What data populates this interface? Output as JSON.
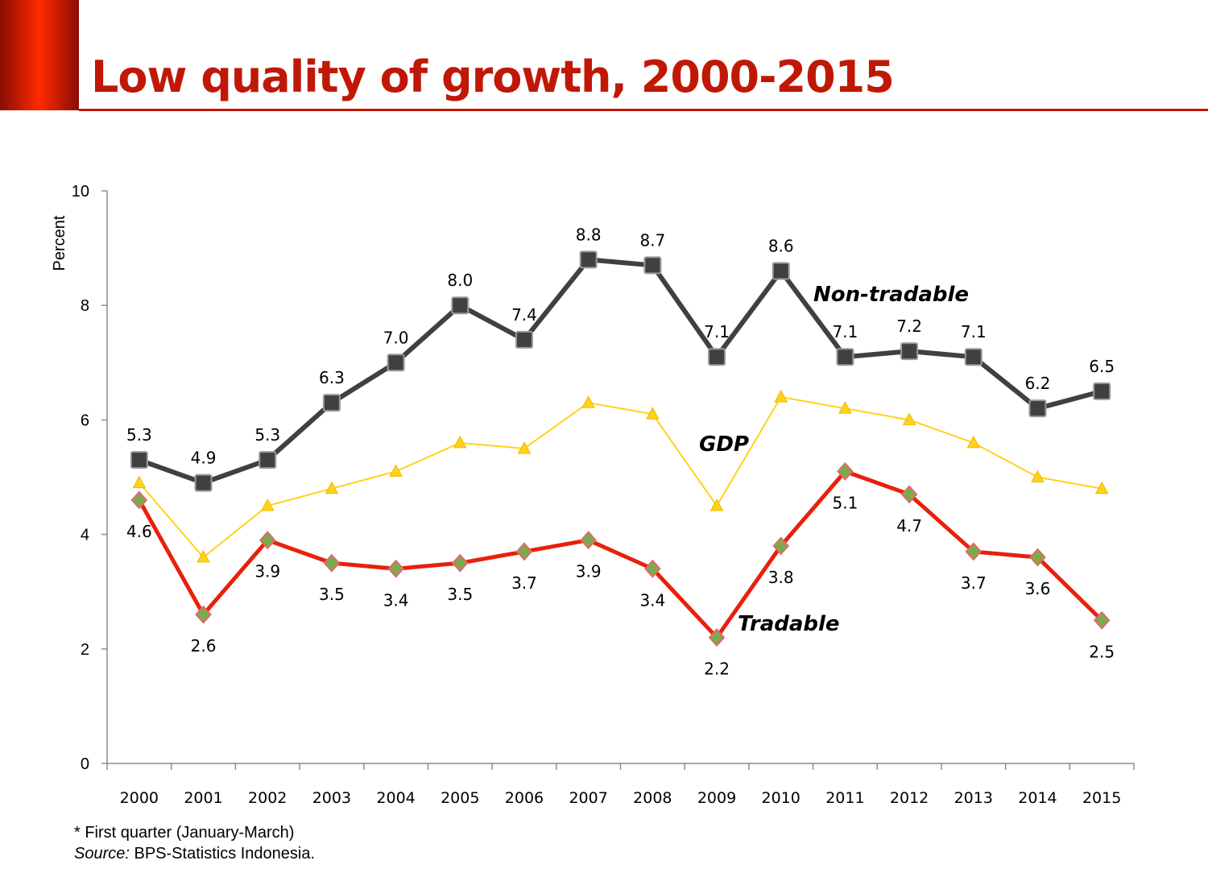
{
  "slide": {
    "title": "Low quality of growth, 2000-2015"
  },
  "footnote": {
    "note": "* First quarter (January-March)",
    "source_label": "Source:",
    "source_text": " BPS-Statistics Indonesia."
  },
  "colors": {
    "title": "#c01806",
    "non_tradable": "#404040",
    "gdp": "#ffd21a",
    "tradable": "#e8200c",
    "tradable_marker": "#7aab4e"
  },
  "chart_data": {
    "type": "line",
    "title": "",
    "xlabel": "",
    "ylabel": "Percent",
    "ylim": [
      0,
      10
    ],
    "yticks": [
      0,
      2,
      4,
      6,
      8,
      10
    ],
    "grid": false,
    "categories": [
      "2000",
      "2001",
      "2002",
      "2003",
      "2004",
      "2005",
      "2006",
      "2007",
      "2008",
      "2009",
      "2010",
      "2011",
      "2012",
      "2013",
      "2014",
      "2015"
    ],
    "series": [
      {
        "name": "Non-tradable",
        "label": "Non-tradable",
        "marker": "square",
        "values": [
          5.3,
          4.9,
          5.3,
          6.3,
          7.0,
          8.0,
          7.4,
          8.8,
          8.7,
          7.1,
          8.6,
          7.1,
          7.2,
          7.1,
          6.2,
          6.5
        ],
        "data_labels": [
          "5.3",
          "4.9",
          "5.3",
          "6.3",
          "7.0",
          "8.0",
          "7.4",
          "8.8",
          "8.7",
          "7.1",
          "8.6",
          "7.1",
          "7.2",
          "7.1",
          "6.2",
          "6.5"
        ]
      },
      {
        "name": "GDP",
        "label": "GDP",
        "marker": "triangle",
        "values": [
          4.9,
          3.6,
          4.5,
          4.8,
          5.1,
          5.6,
          5.5,
          6.3,
          6.1,
          4.5,
          6.4,
          6.2,
          6.0,
          5.6,
          5.0,
          4.8
        ],
        "data_labels": []
      },
      {
        "name": "Tradable",
        "label": "Tradable",
        "marker": "diamond",
        "values": [
          4.6,
          2.6,
          3.9,
          3.5,
          3.4,
          3.5,
          3.7,
          3.9,
          3.4,
          2.2,
          3.8,
          5.1,
          4.7,
          3.7,
          3.6,
          2.5
        ],
        "data_labels": [
          "4.6",
          "2.6",
          "3.9",
          "3.5",
          "3.4",
          "3.5",
          "3.7",
          "3.9",
          "3.4",
          "2.2",
          "3.8",
          "5.1",
          "4.7",
          "3.7",
          "3.6",
          "2.5"
        ]
      }
    ]
  }
}
